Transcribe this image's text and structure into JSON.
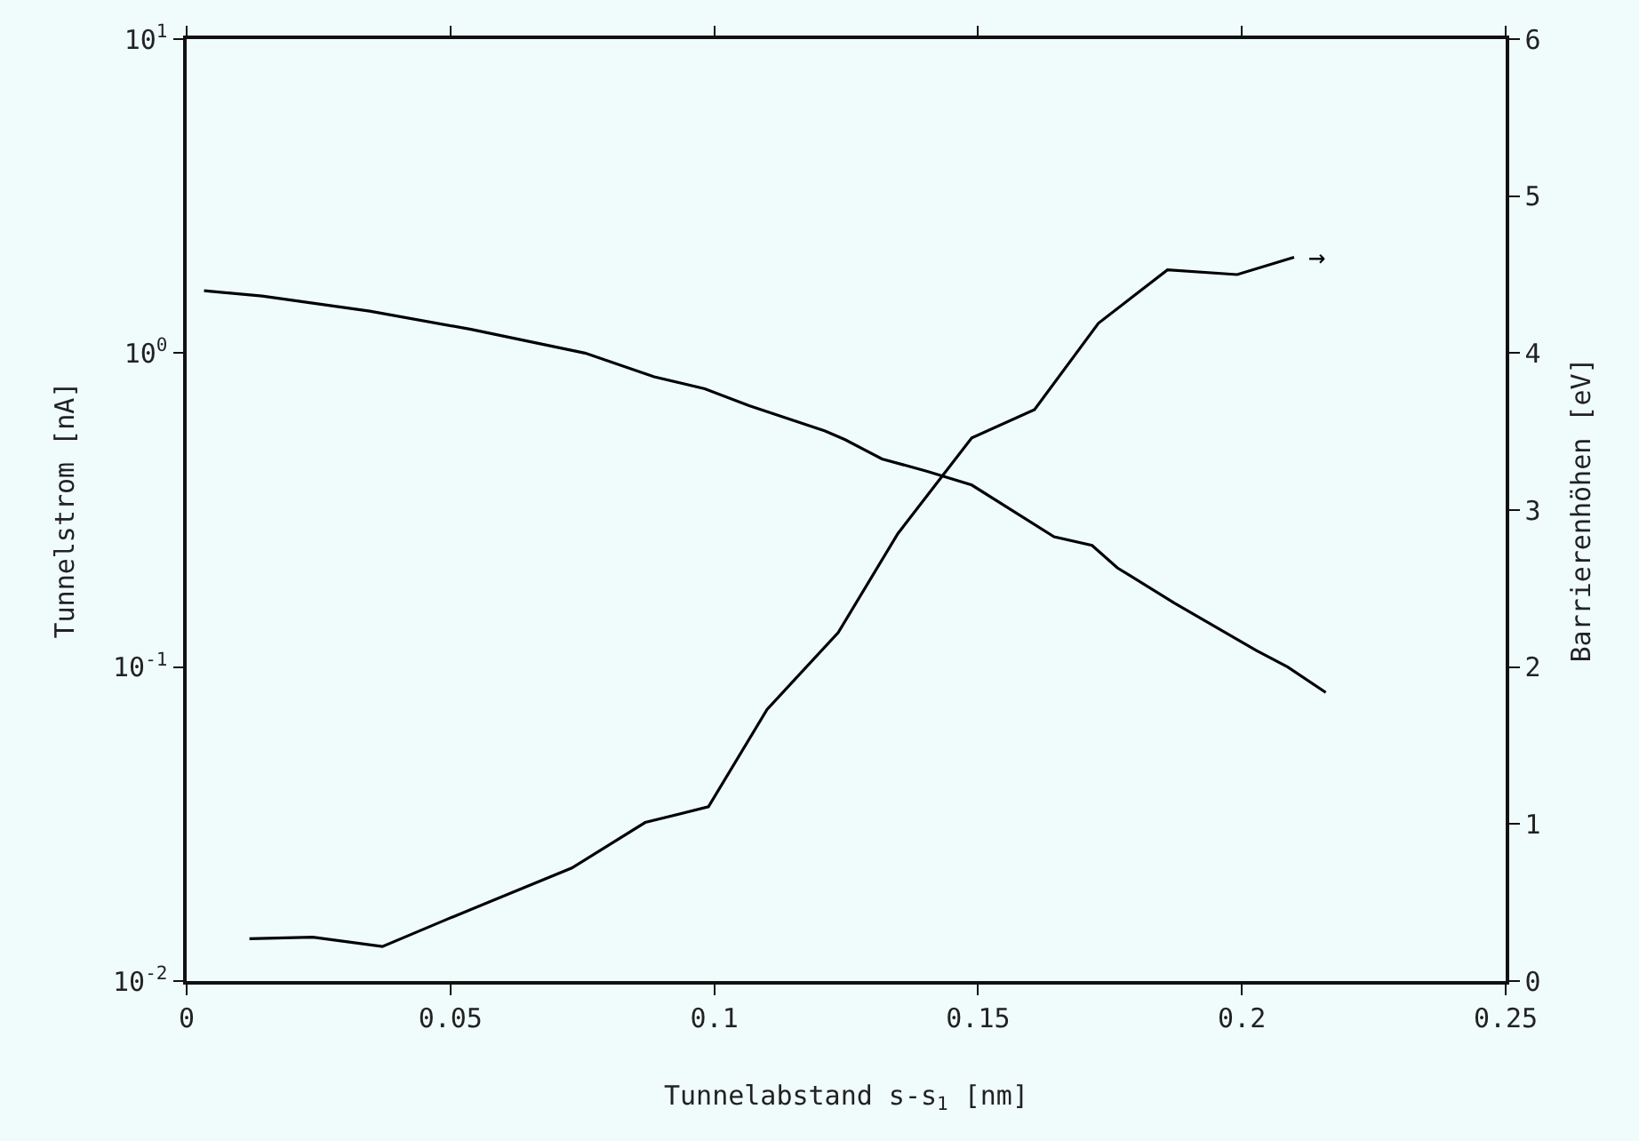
{
  "chart_data": {
    "type": "line",
    "xlabel": "Tunnelabstand s-s$_{1}$ [nm]",
    "ylabel": "Tunnelstrom [nA]",
    "y2label": "Barrierenhöhen [eV]",
    "xlim": [
      0,
      0.25
    ],
    "xticks": [
      0,
      0.05,
      0.1,
      0.15,
      0.2,
      0.25
    ],
    "ylim": [
      0.01,
      10
    ],
    "log": true,
    "yticks": [
      {
        "value": 0.01,
        "label": "10$^{-2}$"
      },
      {
        "value": 0.1,
        "label": "10$^{-1}$"
      },
      {
        "value": 1,
        "label": "10$^{0}$"
      },
      {
        "value": 10,
        "label": "10$^{1}$"
      }
    ],
    "y2lim": [
      0,
      6
    ],
    "y2ticks": [
      0,
      1,
      2,
      3,
      4,
      5,
      6
    ],
    "grid": false,
    "marker": "none",
    "line_style": "solid",
    "series": [
      {
        "color": "#000000",
        "x": [
          0.0033,
          0.0143,
          0.0347,
          0.0539,
          0.0755,
          0.0886,
          0.0982,
          0.1066,
          0.121,
          0.1248,
          0.1318,
          0.1404,
          0.1488,
          0.1644,
          0.1716,
          0.1764,
          0.1872,
          0.2027,
          0.2087,
          0.2159
        ],
        "values": [
          1.58,
          1.52,
          1.36,
          1.19,
          1.0,
          0.84,
          0.77,
          0.68,
          0.565,
          0.53,
          0.46,
          0.42,
          0.38,
          0.26,
          0.244,
          0.207,
          0.16,
          0.113,
          0.1,
          0.083
        ]
      },
      {
        "color": "#000000",
        "axis": "y2",
        "x": [
          0.0119,
          0.0239,
          0.0371,
          0.0491,
          0.073,
          0.0869,
          0.0989,
          0.11,
          0.1235,
          0.1348,
          0.1488,
          0.1607,
          0.1728,
          0.1859,
          0.1991,
          0.2099
        ],
        "values": [
          0.27,
          0.28,
          0.22,
          0.39,
          0.72,
          1.01,
          1.11,
          1.73,
          2.22,
          2.85,
          3.46,
          3.64,
          4.19,
          4.53,
          4.5,
          4.61
        ]
      }
    ],
    "annotations": [
      "→"
    ]
  }
}
